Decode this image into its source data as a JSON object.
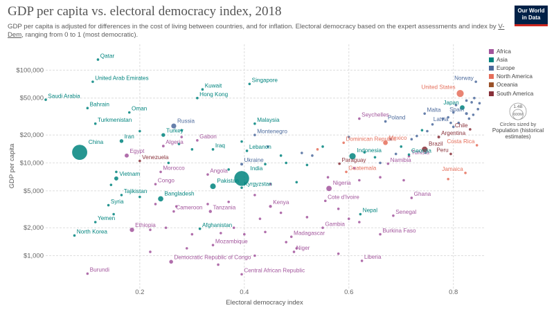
{
  "header": {
    "title": "GDP per capita vs. electoral democracy index, 2018",
    "subtitle_a": "GDP per capita is adjusted for differences in the cost of living between countries, and for inflation. Electoral democracy based on the expert assessments and index by ",
    "subtitle_link": "V-Dem",
    "subtitle_b": ", ranging from 0 to 1 (most democratic).",
    "logo_line1": "Our World",
    "logo_line2": "in Data"
  },
  "legend": {
    "items": [
      {
        "label": "Africa",
        "color": "#a2559c"
      },
      {
        "label": "Asia",
        "color": "#00847e"
      },
      {
        "label": "Europe",
        "color": "#4c6a9c"
      },
      {
        "label": "North America",
        "color": "#e56e5a"
      },
      {
        "label": "Oceania",
        "color": "#9a5129"
      },
      {
        "label": "South America",
        "color": "#883039"
      }
    ],
    "size_key_value": "1.4B",
    "size_key_small": "600M",
    "size_caption": "Circles sized by",
    "size_title": "Population (historical estimates)"
  },
  "chart_data": {
    "type": "scatter",
    "title": "GDP per capita vs. electoral democracy index, 2018",
    "xlabel": "Electoral democracy index",
    "ylabel": "GDP per capita",
    "x_scale": "linear",
    "y_scale": "log",
    "xlim": [
      0.02,
      0.86
    ],
    "ylim": [
      420,
      190000
    ],
    "x_ticks": [
      0.2,
      0.4,
      0.6,
      0.8
    ],
    "x_tick_labels": [
      "0.2",
      "0.4",
      "0.6",
      "0.8"
    ],
    "y_ticks": [
      1000,
      2000,
      5000,
      10000,
      20000,
      50000,
      100000
    ],
    "y_tick_labels": [
      "$1,000",
      "$2,000",
      "$5,000",
      "$10,000",
      "$20,000",
      "$50,000",
      "$100,000"
    ],
    "grid": "horizontal",
    "legend_position": "right",
    "labeled_points": [
      {
        "label": "Qatar",
        "x": 0.12,
        "y": 130000,
        "region": "Asia",
        "pop": 2.8
      },
      {
        "label": "United Arab Emirates",
        "x": 0.11,
        "y": 75000,
        "region": "Asia",
        "pop": 9.6
      },
      {
        "label": "Kuwait",
        "x": 0.32,
        "y": 62000,
        "region": "Asia",
        "pop": 4.1
      },
      {
        "label": "Singapore",
        "x": 0.41,
        "y": 71000,
        "region": "Asia",
        "pop": 5.8
      },
      {
        "label": "Saudi Arabia",
        "x": 0.02,
        "y": 48000,
        "region": "Asia",
        "pop": 33.7
      },
      {
        "label": "Hong Kong",
        "x": 0.31,
        "y": 50000,
        "region": "Asia",
        "pop": 7.4
      },
      {
        "label": "Bahrain",
        "x": 0.1,
        "y": 39000,
        "region": "Asia",
        "pop": 1.5
      },
      {
        "label": "Oman",
        "x": 0.18,
        "y": 35000,
        "region": "Asia",
        "pop": 4.8
      },
      {
        "label": "Turkmenistan",
        "x": 0.115,
        "y": 26500,
        "region": "Asia",
        "pop": 5.9
      },
      {
        "label": "Russia",
        "x": 0.265,
        "y": 25000,
        "region": "Europe",
        "pop": 145
      },
      {
        "label": "Malaysia",
        "x": 0.42,
        "y": 26500,
        "region": "Asia",
        "pop": 31.5
      },
      {
        "label": "Seychelles",
        "x": 0.62,
        "y": 30000,
        "region": "Africa",
        "pop": 0.1
      },
      {
        "label": "Poland",
        "x": 0.67,
        "y": 28000,
        "region": "Europe",
        "pop": 38
      },
      {
        "label": "Malta",
        "x": 0.745,
        "y": 34000,
        "region": "Europe",
        "pop": 0.5
      },
      {
        "label": "Norway",
        "x": 0.843,
        "y": 75000,
        "region": "Europe",
        "pop": 5.3
      },
      {
        "label": "United States",
        "x": 0.813,
        "y": 56000,
        "region": "North America",
        "pop": 327
      },
      {
        "label": "Japan",
        "x": 0.817,
        "y": 39500,
        "region": "Asia",
        "pop": 127
      },
      {
        "label": "Spain",
        "x": 0.825,
        "y": 34000,
        "region": "Europe",
        "pop": 46.7
      },
      {
        "label": "Latvia",
        "x": 0.795,
        "y": 27000,
        "region": "Europe",
        "pop": 1.9
      },
      {
        "label": "Chile",
        "x": 0.832,
        "y": 23000,
        "region": "South America",
        "pop": 18.7
      },
      {
        "label": "Argentina",
        "x": 0.772,
        "y": 19000,
        "region": "South America",
        "pop": 44.4
      },
      {
        "label": "Costa Rica",
        "x": 0.845,
        "y": 15500,
        "region": "North America",
        "pop": 5
      },
      {
        "label": "Turkey",
        "x": 0.245,
        "y": 20000,
        "region": "Asia",
        "pop": 82
      },
      {
        "label": "Gabon",
        "x": 0.31,
        "y": 17500,
        "region": "Africa",
        "pop": 2.1
      },
      {
        "label": "Montenegro",
        "x": 0.42,
        "y": 20000,
        "region": "Europe",
        "pop": 0.6
      },
      {
        "label": "Iran",
        "x": 0.165,
        "y": 17200,
        "region": "Asia",
        "pop": 82
      },
      {
        "label": "China",
        "x": 0.085,
        "y": 13000,
        "region": "Asia",
        "pop": 1400
      },
      {
        "label": "Algeria",
        "x": 0.245,
        "y": 15200,
        "region": "Africa",
        "pop": 42
      },
      {
        "label": "Egypt",
        "x": 0.175,
        "y": 12000,
        "region": "Africa",
        "pop": 98
      },
      {
        "label": "Venezuela",
        "x": 0.2,
        "y": 10500,
        "region": "South America",
        "pop": 28.9
      },
      {
        "label": "Iraq",
        "x": 0.34,
        "y": 14000,
        "region": "Asia",
        "pop": 38
      },
      {
        "label": "Lebanon",
        "x": 0.405,
        "y": 13500,
        "region": "Asia",
        "pop": 6.8
      },
      {
        "label": "Dominican Republic",
        "x": 0.59,
        "y": 16500,
        "region": "North America",
        "pop": 10.6
      },
      {
        "label": "Mexico",
        "x": 0.67,
        "y": 16500,
        "region": "North America",
        "pop": 126
      },
      {
        "label": "Brazil",
        "x": 0.745,
        "y": 14000,
        "region": "South America",
        "pop": 209
      },
      {
        "label": "Indonesia",
        "x": 0.607,
        "y": 11800,
        "region": "Asia",
        "pop": 267
      },
      {
        "label": "Georgia",
        "x": 0.715,
        "y": 12300,
        "region": "Asia",
        "pop": 3.7
      },
      {
        "label": "Peru",
        "x": 0.795,
        "y": 12500,
        "region": "South America",
        "pop": 32
      },
      {
        "label": "Ukraine",
        "x": 0.395,
        "y": 9700,
        "region": "Europe",
        "pop": 44
      },
      {
        "label": "Paraguay",
        "x": 0.582,
        "y": 9800,
        "region": "South America",
        "pop": 6.9
      },
      {
        "label": "Namibia",
        "x": 0.675,
        "y": 9800,
        "region": "Africa",
        "pop": 2.4
      },
      {
        "label": "Morocco",
        "x": 0.24,
        "y": 8000,
        "region": "Africa",
        "pop": 36
      },
      {
        "label": "Angola",
        "x": 0.33,
        "y": 7500,
        "region": "Africa",
        "pop": 30.8
      },
      {
        "label": "India",
        "x": 0.395,
        "y": 6800,
        "region": "Asia",
        "pop": 1350
      },
      {
        "label": "Guatemala",
        "x": 0.595,
        "y": 8000,
        "region": "North America",
        "pop": 17.2
      },
      {
        "label": "Jamaica",
        "x": 0.823,
        "y": 7800,
        "region": "North America",
        "pop": 2.9
      },
      {
        "label": "Vietnam",
        "x": 0.155,
        "y": 6800,
        "region": "Asia",
        "pop": 95.5
      },
      {
        "label": "Congo",
        "x": 0.23,
        "y": 5900,
        "region": "Africa",
        "pop": 5.2
      },
      {
        "label": "Pakistan",
        "x": 0.34,
        "y": 5600,
        "region": "Asia",
        "pop": 212
      },
      {
        "label": "Kyrgyzstan",
        "x": 0.395,
        "y": 5400,
        "region": "Asia",
        "pop": 6.3
      },
      {
        "label": "Nigeria",
        "x": 0.562,
        "y": 5300,
        "region": "Africa",
        "pop": 196
      },
      {
        "label": "Tajikistan",
        "x": 0.165,
        "y": 4500,
        "region": "Asia",
        "pop": 9.1
      },
      {
        "label": "Bangladesh",
        "x": 0.24,
        "y": 4100,
        "region": "Asia",
        "pop": 161
      },
      {
        "label": "Ghana",
        "x": 0.72,
        "y": 4200,
        "region": "Africa",
        "pop": 29.8
      },
      {
        "label": "Cote d'Ivoire",
        "x": 0.555,
        "y": 3900,
        "region": "Africa",
        "pop": 25
      },
      {
        "label": "Syria",
        "x": 0.14,
        "y": 3500,
        "region": "Asia",
        "pop": 17
      },
      {
        "label": "Kenya",
        "x": 0.45,
        "y": 3400,
        "region": "Africa",
        "pop": 51
      },
      {
        "label": "Cameroon",
        "x": 0.265,
        "y": 3000,
        "region": "Africa",
        "pop": 25
      },
      {
        "label": "Tanzania",
        "x": 0.335,
        "y": 3000,
        "region": "Africa",
        "pop": 56
      },
      {
        "label": "Nepal",
        "x": 0.622,
        "y": 2800,
        "region": "Asia",
        "pop": 28
      },
      {
        "label": "Senegal",
        "x": 0.685,
        "y": 2700,
        "region": "Africa",
        "pop": 15.9
      },
      {
        "label": "Yemen",
        "x": 0.115,
        "y": 2300,
        "region": "Asia",
        "pop": 28.5
      },
      {
        "label": "Ethiopia",
        "x": 0.185,
        "y": 1900,
        "region": "Africa",
        "pop": 109
      },
      {
        "label": "Afghanistan",
        "x": 0.315,
        "y": 1950,
        "region": "Asia",
        "pop": 37
      },
      {
        "label": "Gambia",
        "x": 0.55,
        "y": 2000,
        "region": "Africa",
        "pop": 2.3
      },
      {
        "label": "North Korea",
        "x": 0.075,
        "y": 1650,
        "region": "Asia",
        "pop": 25.5
      },
      {
        "label": "Burkina Faso",
        "x": 0.66,
        "y": 1700,
        "region": "Africa",
        "pop": 19.8
      },
      {
        "label": "Madagascar",
        "x": 0.49,
        "y": 1600,
        "region": "Africa",
        "pop": 26
      },
      {
        "label": "Mozambique",
        "x": 0.34,
        "y": 1300,
        "region": "Africa",
        "pop": 29.5
      },
      {
        "label": "Niger",
        "x": 0.495,
        "y": 1100,
        "region": "Africa",
        "pop": 22.4
      },
      {
        "label": "Democratic Republic of Congo",
        "x": 0.26,
        "y": 860,
        "region": "Africa",
        "pop": 84
      },
      {
        "label": "Liberia",
        "x": 0.625,
        "y": 880,
        "region": "Africa",
        "pop": 4.8
      },
      {
        "label": "Burundi",
        "x": 0.1,
        "y": 640,
        "region": "Africa",
        "pop": 11.2
      },
      {
        "label": "Central African Republic",
        "x": 0.395,
        "y": 630,
        "region": "Africa",
        "pop": 4.7
      },
      {
        "label": "Tunisia",
        "x": 0.715,
        "y": 11800,
        "region": "Africa",
        "pop": 11.6
      }
    ],
    "unlabeled_points": [
      {
        "x": 0.2,
        "y": 22000,
        "region": "Asia"
      },
      {
        "x": 0.28,
        "y": 22500,
        "region": "Asia"
      },
      {
        "x": 0.155,
        "y": 8000,
        "region": "Asia"
      },
      {
        "x": 0.28,
        "y": 19000,
        "region": "Africa"
      },
      {
        "x": 0.275,
        "y": 16000,
        "region": "Asia"
      },
      {
        "x": 0.3,
        "y": 14000,
        "region": "Asia"
      },
      {
        "x": 0.255,
        "y": 10000,
        "region": "Asia"
      },
      {
        "x": 0.44,
        "y": 9700,
        "region": "Asia"
      },
      {
        "x": 0.48,
        "y": 10000,
        "region": "Asia"
      },
      {
        "x": 0.52,
        "y": 9500,
        "region": "Asia"
      },
      {
        "x": 0.53,
        "y": 12000,
        "region": "Europe"
      },
      {
        "x": 0.63,
        "y": 13000,
        "region": "Asia"
      },
      {
        "x": 0.65,
        "y": 11500,
        "region": "Asia"
      },
      {
        "x": 0.66,
        "y": 10000,
        "region": "Europe"
      },
      {
        "x": 0.69,
        "y": 12500,
        "region": "Europe"
      },
      {
        "x": 0.7,
        "y": 15000,
        "region": "Asia"
      },
      {
        "x": 0.72,
        "y": 18000,
        "region": "Europe"
      },
      {
        "x": 0.75,
        "y": 22000,
        "region": "Europe"
      },
      {
        "x": 0.76,
        "y": 26000,
        "region": "Europe"
      },
      {
        "x": 0.78,
        "y": 30000,
        "region": "Europe"
      },
      {
        "x": 0.8,
        "y": 35000,
        "region": "Europe"
      },
      {
        "x": 0.805,
        "y": 42000,
        "region": "Europe"
      },
      {
        "x": 0.825,
        "y": 47000,
        "region": "Europe"
      },
      {
        "x": 0.835,
        "y": 45000,
        "region": "Europe"
      },
      {
        "x": 0.84,
        "y": 50000,
        "region": "Europe"
      },
      {
        "x": 0.85,
        "y": 44000,
        "region": "Europe"
      },
      {
        "x": 0.847,
        "y": 38000,
        "region": "Europe"
      },
      {
        "x": 0.838,
        "y": 33000,
        "region": "Europe"
      },
      {
        "x": 0.83,
        "y": 30000,
        "region": "Europe"
      },
      {
        "x": 0.81,
        "y": 27000,
        "region": "Europe"
      },
      {
        "x": 0.8,
        "y": 24500,
        "region": "Europe"
      },
      {
        "x": 0.79,
        "y": 31000,
        "region": "Europe"
      },
      {
        "x": 0.74,
        "y": 22500,
        "region": "Asia"
      },
      {
        "x": 0.73,
        "y": 19500,
        "region": "Europe"
      },
      {
        "x": 0.68,
        "y": 18000,
        "region": "Europe"
      },
      {
        "x": 0.6,
        "y": 19000,
        "region": "Europe"
      },
      {
        "x": 0.55,
        "y": 15000,
        "region": "Asia"
      },
      {
        "x": 0.51,
        "y": 12800,
        "region": "Europe"
      },
      {
        "x": 0.47,
        "y": 12000,
        "region": "Asia"
      },
      {
        "x": 0.445,
        "y": 15000,
        "region": "Europe"
      },
      {
        "x": 0.395,
        "y": 17000,
        "region": "Asia"
      },
      {
        "x": 0.56,
        "y": 7000,
        "region": "Africa"
      },
      {
        "x": 0.62,
        "y": 6500,
        "region": "Africa"
      },
      {
        "x": 0.66,
        "y": 7000,
        "region": "Africa"
      },
      {
        "x": 0.705,
        "y": 6500,
        "region": "Africa"
      },
      {
        "x": 0.79,
        "y": 6700,
        "region": "North America"
      },
      {
        "x": 0.5,
        "y": 6200,
        "region": "Asia"
      },
      {
        "x": 0.45,
        "y": 5900,
        "region": "Africa"
      },
      {
        "x": 0.42,
        "y": 4500,
        "region": "Africa"
      },
      {
        "x": 0.37,
        "y": 3800,
        "region": "Africa"
      },
      {
        "x": 0.33,
        "y": 3600,
        "region": "Africa"
      },
      {
        "x": 0.27,
        "y": 3400,
        "region": "Africa"
      },
      {
        "x": 0.23,
        "y": 3600,
        "region": "Africa"
      },
      {
        "x": 0.2,
        "y": 4300,
        "region": "Asia"
      },
      {
        "x": 0.58,
        "y": 3200,
        "region": "Africa"
      },
      {
        "x": 0.6,
        "y": 2500,
        "region": "Africa"
      },
      {
        "x": 0.62,
        "y": 2300,
        "region": "Africa"
      },
      {
        "x": 0.52,
        "y": 2600,
        "region": "Africa"
      },
      {
        "x": 0.47,
        "y": 2900,
        "region": "Africa"
      },
      {
        "x": 0.43,
        "y": 2500,
        "region": "Africa"
      },
      {
        "x": 0.38,
        "y": 2000,
        "region": "Africa"
      },
      {
        "x": 0.355,
        "y": 1750,
        "region": "Africa"
      },
      {
        "x": 0.4,
        "y": 1700,
        "region": "Africa"
      },
      {
        "x": 0.44,
        "y": 1800,
        "region": "Africa"
      },
      {
        "x": 0.48,
        "y": 1400,
        "region": "Africa"
      },
      {
        "x": 0.5,
        "y": 1200,
        "region": "Africa"
      },
      {
        "x": 0.3,
        "y": 1700,
        "region": "Africa"
      },
      {
        "x": 0.22,
        "y": 1900,
        "region": "Africa"
      },
      {
        "x": 0.25,
        "y": 2000,
        "region": "Africa"
      },
      {
        "x": 0.15,
        "y": 2800,
        "region": "Asia"
      },
      {
        "x": 0.145,
        "y": 5800,
        "region": "Asia"
      },
      {
        "x": 0.29,
        "y": 1200,
        "region": "Africa"
      },
      {
        "x": 0.22,
        "y": 1100,
        "region": "Africa"
      },
      {
        "x": 0.58,
        "y": 1050,
        "region": "Africa"
      },
      {
        "x": 0.42,
        "y": 1000,
        "region": "Africa"
      },
      {
        "x": 0.35,
        "y": 800,
        "region": "Africa"
      },
      {
        "x": 0.54,
        "y": 14000,
        "region": "North America"
      },
      {
        "x": 0.61,
        "y": 8800,
        "region": "Africa"
      },
      {
        "x": 0.37,
        "y": 8500,
        "region": "Asia"
      }
    ]
  }
}
